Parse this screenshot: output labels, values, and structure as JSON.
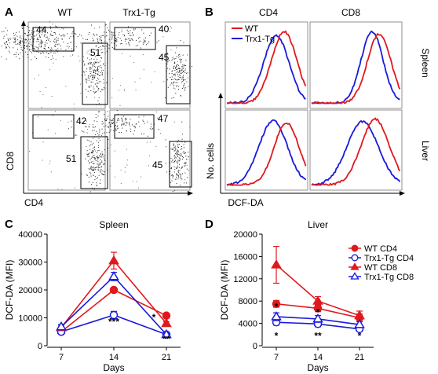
{
  "panel_a": {
    "letter": "A",
    "col_headers": [
      "WT",
      "Trx1-Tg"
    ],
    "ylabel": "CD8",
    "xlabel": "CD4",
    "plots": [
      {
        "name": "wt-top",
        "cd8_pct": "44",
        "cd4_pct": "51"
      },
      {
        "name": "tg-top",
        "cd8_pct": "40",
        "cd4_pct": "45"
      },
      {
        "name": "wt-bottom",
        "cd8_pct": "42",
        "cd4_pct": "51"
      },
      {
        "name": "tg-bottom",
        "cd8_pct": "47",
        "cd4_pct": "45"
      }
    ]
  },
  "panel_b": {
    "letter": "B",
    "col_headers": [
      "CD4",
      "CD8"
    ],
    "row_labels": [
      "Spleen",
      "Liver"
    ],
    "ylabel": "No. cells",
    "xlabel": "DCF-DA",
    "legend": [
      "WT",
      "Trx1-Tg"
    ],
    "colors": {
      "wt": "#e0191e",
      "tg": "#1a1adc"
    }
  },
  "chart_data": [
    {
      "panel": "C",
      "type": "line",
      "title": "Spleen",
      "xlabel": "Days",
      "ylabel": "DCF-DA (MFI)",
      "x": [
        7,
        14,
        21
      ],
      "ylim": [
        0,
        40000
      ],
      "yticks": [
        "0",
        "10000",
        "20000",
        "30000",
        "40000"
      ],
      "series": [
        {
          "name": "WT CD4",
          "marker": "circle-filled",
          "color": "#e0191e",
          "values": [
            5000,
            20000,
            10800
          ],
          "err": [
            500,
            800,
            700
          ]
        },
        {
          "name": "Trx1-Tg CD4",
          "marker": "circle-open",
          "color": "#1a1adc",
          "values": [
            5000,
            11000,
            4000
          ],
          "err": [
            500,
            1300,
            400
          ]
        },
        {
          "name": "WT CD8",
          "marker": "triangle-filled",
          "color": "#e0191e",
          "values": [
            6500,
            30500,
            8000
          ],
          "err": [
            800,
            3000,
            600
          ]
        },
        {
          "name": "Trx1-Tg CD8",
          "marker": "triangle-open",
          "color": "#1a1adc",
          "values": [
            6800,
            24800,
            4000
          ],
          "err": [
            800,
            1500,
            500
          ]
        }
      ],
      "annotations": [
        "***",
        "*",
        "**"
      ]
    },
    {
      "panel": "D",
      "type": "line",
      "title": "Liver",
      "xlabel": "Days",
      "ylabel": "DCF-DA (MFI)",
      "x": [
        7,
        14,
        21
      ],
      "ylim": [
        0,
        20000
      ],
      "yticks": [
        "0",
        "4000",
        "8000",
        "12000",
        "16000",
        "20000"
      ],
      "series": [
        {
          "name": "WT CD4",
          "marker": "circle-filled",
          "color": "#e0191e",
          "values": [
            7500,
            6700,
            5000
          ],
          "err": [
            600,
            600,
            700
          ]
        },
        {
          "name": "Trx1-Tg CD4",
          "marker": "circle-open",
          "color": "#1a1adc",
          "values": [
            4200,
            3900,
            3000
          ],
          "err": [
            500,
            500,
            400
          ]
        },
        {
          "name": "WT CD8",
          "marker": "triangle-filled",
          "color": "#e0191e",
          "values": [
            14500,
            8000,
            5400
          ],
          "err": [
            3300,
            800,
            800
          ]
        },
        {
          "name": "Trx1-Tg CD8",
          "marker": "triangle-open",
          "color": "#1a1adc",
          "values": [
            5200,
            4800,
            3800
          ],
          "err": [
            700,
            600,
            500
          ]
        }
      ],
      "annotations": [
        "*",
        "*",
        "*",
        "**",
        "*"
      ]
    }
  ]
}
